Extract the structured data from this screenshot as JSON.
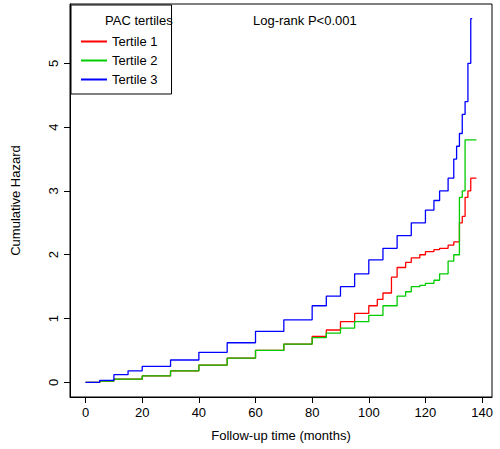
{
  "chart_data": {
    "type": "line",
    "x_label": "Follow-up time (months)",
    "y_label": "Cumulative Hazard",
    "legend_title": "PAC tertiles",
    "annotation": "Log-rank P<0.001",
    "legend": "upper left",
    "grid": false,
    "line_style": "step",
    "xlim": [
      -5.5,
      143.5
    ],
    "xticks": [
      0,
      20,
      40,
      60,
      80,
      100,
      120,
      140
    ],
    "ylim": [
      -0.23,
      5.93
    ],
    "yticks": [
      0,
      1,
      2,
      3,
      4,
      5
    ],
    "series": [
      {
        "name": "Tertile 1",
        "color": "#ff0000",
        "x": [
          0,
          5,
          10,
          20,
          30,
          40,
          50,
          60,
          70,
          80,
          85,
          90,
          95,
          100,
          103,
          105,
          108,
          110,
          113,
          115,
          118,
          120,
          123,
          125,
          128,
          130,
          132,
          133,
          134,
          135,
          136,
          138
        ],
        "values": [
          0,
          0.02,
          0.05,
          0.1,
          0.18,
          0.27,
          0.38,
          0.5,
          0.6,
          0.72,
          0.82,
          0.95,
          1.08,
          1.2,
          1.3,
          1.4,
          1.65,
          1.8,
          1.88,
          1.95,
          2.0,
          2.05,
          2.08,
          2.1,
          2.15,
          2.2,
          2.5,
          2.6,
          2.9,
          3.0,
          3.2,
          3.2
        ]
      },
      {
        "name": "Tertile 2",
        "color": "#00cc00",
        "x": [
          0,
          5,
          10,
          20,
          30,
          40,
          50,
          60,
          70,
          80,
          85,
          90,
          95,
          100,
          105,
          110,
          113,
          115,
          118,
          120,
          123,
          125,
          128,
          130,
          132,
          133,
          134,
          136,
          138
        ],
        "values": [
          0,
          0.02,
          0.05,
          0.1,
          0.18,
          0.27,
          0.38,
          0.5,
          0.6,
          0.7,
          0.77,
          0.85,
          0.95,
          1.05,
          1.2,
          1.35,
          1.42,
          1.5,
          1.52,
          1.55,
          1.6,
          1.7,
          1.9,
          2.0,
          2.9,
          3.0,
          3.8,
          3.8,
          3.8
        ]
      },
      {
        "name": "Tertile 3",
        "color": "#0000ff",
        "x": [
          0,
          5,
          10,
          15,
          20,
          30,
          40,
          50,
          60,
          70,
          80,
          85,
          90,
          95,
          100,
          105,
          110,
          115,
          120,
          123,
          125,
          128,
          130,
          131,
          132,
          133,
          134,
          135,
          136,
          136.5
        ],
        "values": [
          0,
          0.03,
          0.12,
          0.18,
          0.25,
          0.35,
          0.47,
          0.62,
          0.8,
          0.98,
          1.2,
          1.35,
          1.5,
          1.7,
          1.92,
          2.1,
          2.3,
          2.5,
          2.7,
          2.85,
          3.0,
          3.2,
          3.5,
          3.7,
          3.9,
          4.2,
          4.4,
          5.0,
          5.7,
          5.7
        ]
      }
    ]
  }
}
